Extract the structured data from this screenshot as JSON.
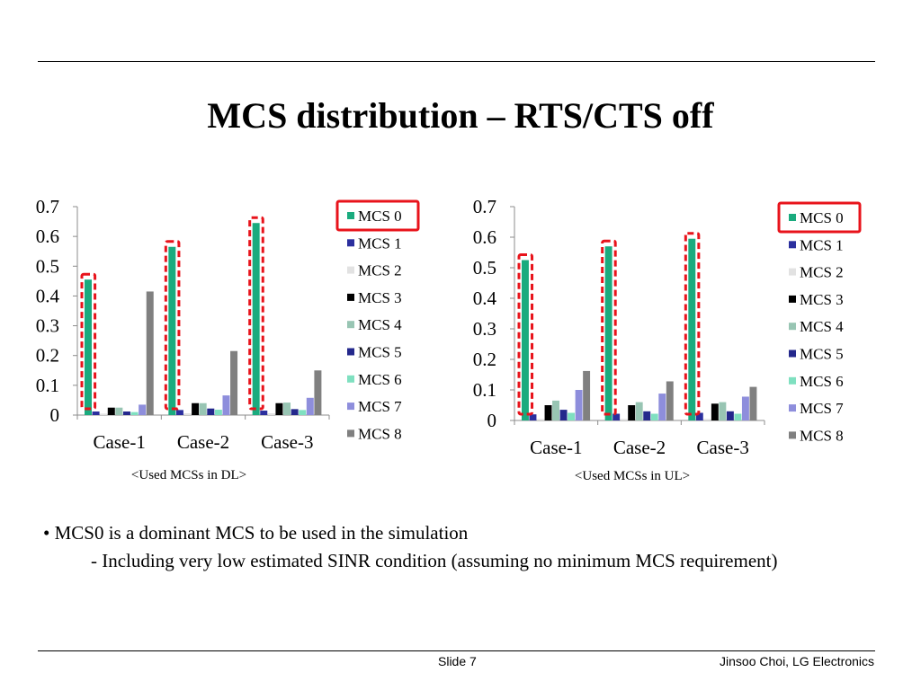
{
  "slide": {
    "title": "MCS distribution – RTS/CTS off",
    "bullets": [
      "• MCS0 is a dominant MCS to be used in the simulation",
      "- Including very low estimated SINR condition (assuming no minimum MCS requirement)"
    ],
    "footer": {
      "slide_number": "Slide 7",
      "author": "Jinsoo Choi, LG Electronics"
    }
  },
  "colors": {
    "MCS 0": "#1aab7e",
    "MCS 1": "#2b2f9e",
    "MCS 2": "#e2e2e2",
    "MCS 3": "#000000",
    "MCS 4": "#98c5b3",
    "MCS 5": "#24288c",
    "MCS 6": "#7fe0c0",
    "MCS 7": "#8e8edc",
    "MCS 8": "#808080",
    "highlight": "#e8131b"
  },
  "chart_data": [
    {
      "type": "bar",
      "caption": "<Used MCSs in DL>",
      "categories": [
        "Case-1",
        "Case-2",
        "Case-3"
      ],
      "ylim": [
        0,
        0.7
      ],
      "yticks": [
        "0",
        "0.1",
        "0.2",
        "0.3",
        "0.4",
        "0.5",
        "0.6",
        "0.7"
      ],
      "legend_position": "right",
      "grid": false,
      "series": [
        {
          "name": "MCS 0",
          "values": [
            0.455,
            0.565,
            0.645
          ]
        },
        {
          "name": "MCS 1",
          "values": [
            0.012,
            0.017,
            0.015
          ]
        },
        {
          "name": "MCS 2",
          "values": [
            0.005,
            0.006,
            0.006
          ]
        },
        {
          "name": "MCS 3",
          "values": [
            0.025,
            0.04,
            0.04
          ]
        },
        {
          "name": "MCS 4",
          "values": [
            0.025,
            0.04,
            0.042
          ]
        },
        {
          "name": "MCS 5",
          "values": [
            0.012,
            0.022,
            0.02
          ]
        },
        {
          "name": "MCS 6",
          "values": [
            0.01,
            0.018,
            0.017
          ]
        },
        {
          "name": "MCS 7",
          "values": [
            0.035,
            0.066,
            0.058
          ]
        },
        {
          "name": "MCS 8",
          "values": [
            0.415,
            0.215,
            0.15
          ]
        }
      ]
    },
    {
      "type": "bar",
      "caption": "<Used MCSs in UL>",
      "categories": [
        "Case-1",
        "Case-2",
        "Case-3"
      ],
      "ylim": [
        0,
        0.7
      ],
      "yticks": [
        "0",
        "0.1",
        "0.2",
        "0.3",
        "0.4",
        "0.5",
        "0.6",
        "0.7"
      ],
      "legend_position": "right",
      "grid": false,
      "series": [
        {
          "name": "MCS 0",
          "values": [
            0.525,
            0.57,
            0.595
          ]
        },
        {
          "name": "MCS 1",
          "values": [
            0.02,
            0.022,
            0.025
          ]
        },
        {
          "name": "MCS 2",
          "values": [
            0.005,
            0.005,
            0.005
          ]
        },
        {
          "name": "MCS 3",
          "values": [
            0.05,
            0.05,
            0.055
          ]
        },
        {
          "name": "MCS 4",
          "values": [
            0.065,
            0.06,
            0.06
          ]
        },
        {
          "name": "MCS 5",
          "values": [
            0.035,
            0.03,
            0.03
          ]
        },
        {
          "name": "MCS 6",
          "values": [
            0.025,
            0.022,
            0.022
          ]
        },
        {
          "name": "MCS 7",
          "values": [
            0.1,
            0.088,
            0.078
          ]
        },
        {
          "name": "MCS 8",
          "values": [
            0.162,
            0.128,
            0.11
          ]
        }
      ]
    }
  ]
}
